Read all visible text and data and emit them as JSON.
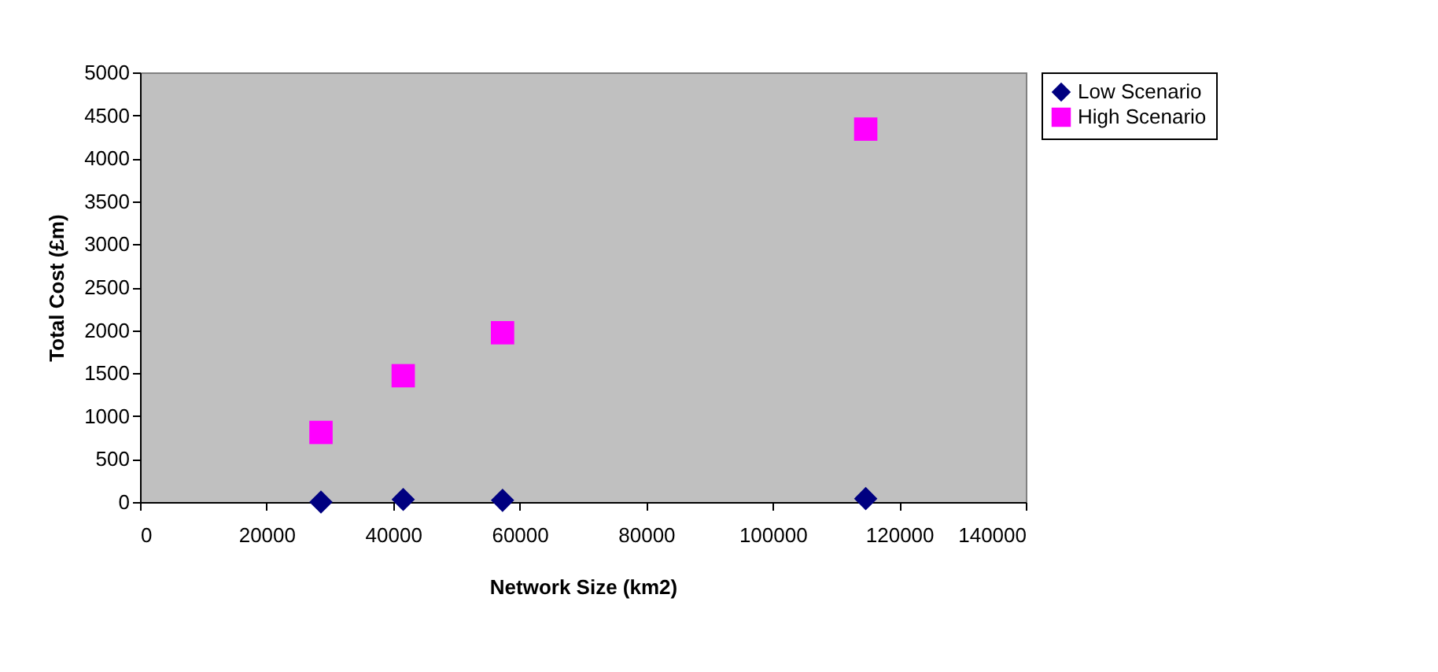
{
  "chart_data": {
    "type": "scatter",
    "xlabel": "Network Size (km2)",
    "ylabel": "Total Cost (£m)",
    "xlim": [
      0,
      140000
    ],
    "xticks": [
      0,
      20000,
      40000,
      60000,
      80000,
      100000,
      120000,
      140000
    ],
    "ylim": [
      0,
      5000
    ],
    "yticks": [
      0,
      500,
      1000,
      1500,
      2000,
      2500,
      3000,
      3500,
      4000,
      4500,
      5000
    ],
    "x": [
      28600,
      41600,
      57300,
      114700
    ],
    "series": [
      {
        "name": "Low Scenario",
        "color": "#000080",
        "marker": "diamond",
        "values": [
          0,
          30,
          20,
          40
        ]
      },
      {
        "name": "High Scenario",
        "color": "#ff00ff",
        "marker": "square",
        "values": [
          810,
          1470,
          1970,
          4340
        ]
      }
    ],
    "grid": false,
    "legend": "right"
  }
}
